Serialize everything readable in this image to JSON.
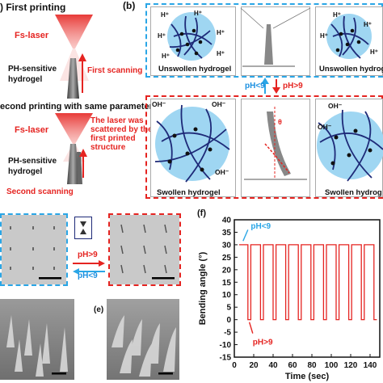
{
  "panel_a": {
    "first_printing": ") First printing",
    "fs_laser_1": "Fs-laser",
    "ph_hydrogel_1a": "PH-sensitive",
    "ph_hydrogel_1b": "hydrogel",
    "first_scanning": "First scanning",
    "second_printing": "econd printing with same parameters",
    "fs_laser_2": "Fs-laser",
    "scatter_note_1": "The laser was",
    "scatter_note_2": "scattered by the",
    "scatter_note_3": "first printed",
    "scatter_note_4": "structure",
    "ph_hydrogel_2a": "PH-sensitive",
    "ph_hydrogel_2b": "hydrogel",
    "second_scanning": "Second scanning"
  },
  "panel_b": {
    "label": "(b)",
    "h_plus": "H⁺",
    "unswollen_left": "Unswollen hydrogel",
    "unswollen_right": "Unswollen hydrogel",
    "ph_lt9": "pH<9",
    "ph_gt9": "pH>9",
    "oh_minus": "OH⁻",
    "theta": "θ",
    "swollen_left": "Swollen hydrogel",
    "swollen_right": "Swollen hydrog"
  },
  "panel_c": {
    "ph_gt9": "pH>9",
    "ph_lt9": "pH<9"
  },
  "panel_e": {
    "label": "(e)"
  },
  "panel_f": {
    "label": "(f)",
    "ylabel": "Bending angle (°)",
    "xlabel": "Time (sec)",
    "annot_top": "pH<9",
    "annot_bottom": "pH>9"
  },
  "colors": {
    "red": "#e52421",
    "blue": "#2aa6e6"
  },
  "chart_data": {
    "type": "line",
    "xlabel": "Time (sec)",
    "ylabel": "Bending angle (°)",
    "xlim": [
      0,
      150
    ],
    "ylim": [
      -15,
      40
    ],
    "yticks": [
      -15,
      -10,
      -5,
      0,
      5,
      10,
      15,
      20,
      25,
      30,
      35,
      40
    ],
    "xticks": [
      0,
      20,
      40,
      60,
      80,
      100,
      120,
      140
    ],
    "series": [
      {
        "color": "#e52421",
        "x": [
          5,
          14,
          14,
          17,
          17,
          27,
          27,
          30,
          30,
          40,
          40,
          43,
          43,
          53,
          53,
          56,
          56,
          66,
          66,
          69,
          69,
          79,
          79,
          82,
          82,
          92,
          92,
          95,
          95,
          105,
          105,
          108,
          108,
          118,
          118,
          121,
          121,
          131,
          131,
          134,
          134,
          144,
          144,
          147
        ],
        "y": [
          30,
          30,
          0,
          0,
          30,
          30,
          0,
          0,
          30,
          30,
          0,
          0,
          30,
          30,
          0,
          0,
          30,
          30,
          0,
          0,
          30,
          30,
          0,
          0,
          30,
          30,
          0,
          0,
          30,
          30,
          0,
          0,
          30,
          30,
          0,
          0,
          30,
          30,
          0,
          0,
          30,
          30,
          0,
          0
        ]
      }
    ]
  }
}
